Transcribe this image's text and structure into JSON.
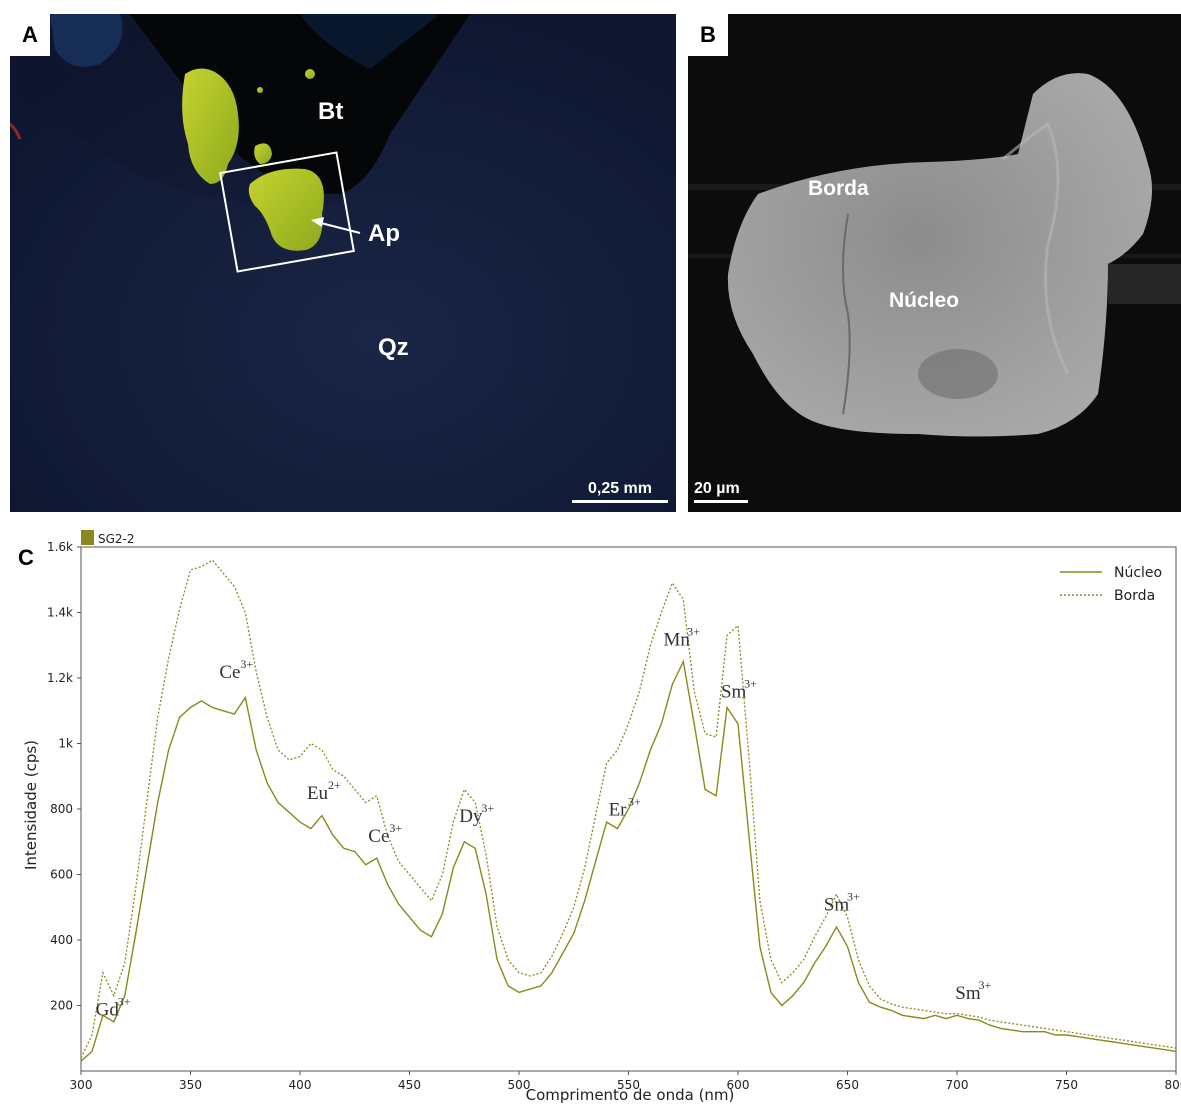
{
  "panel_a": {
    "letter": "A",
    "labels": {
      "bt": "Bt",
      "ap": "Ap",
      "qz": "Qz"
    },
    "scalebar": "0,25 mm",
    "colors": {
      "background": "#101a30",
      "apatite": "#b8cc28",
      "biotite": "#050608",
      "quartz": "#16203a"
    }
  },
  "panel_b": {
    "letter": "B",
    "labels": {
      "borda": "Borda",
      "nucleo": "Núcleo"
    },
    "scalebar": "20 µm",
    "colors": {
      "background": "#0c0c0c",
      "grain": "#9a9a9a"
    }
  },
  "panel_c": {
    "letter": "C"
  },
  "chart_data": {
    "type": "line",
    "sample_label": "SG2-2",
    "xlabel": "Comprimento de onda (nm)",
    "ylabel": "Intensidade (cps)",
    "xlim": [
      300,
      800
    ],
    "ylim": [
      0,
      1600
    ],
    "x_ticks": [
      300,
      350,
      400,
      450,
      500,
      550,
      600,
      650,
      700,
      750,
      800
    ],
    "y_ticks": [
      200,
      400,
      600,
      800,
      1000,
      1200,
      1400,
      1600
    ],
    "y_tick_labels": [
      "200",
      "400",
      "600",
      "800",
      "1k",
      "1.2k",
      "1.4k",
      "1.6k"
    ],
    "legend_position": "top-right",
    "series": [
      {
        "name": "Núcleo",
        "style": "solid",
        "color": "#8a8a1c",
        "x": [
          300,
          305,
          310,
          315,
          320,
          325,
          330,
          335,
          340,
          345,
          350,
          355,
          360,
          365,
          370,
          375,
          380,
          385,
          390,
          395,
          400,
          405,
          410,
          415,
          420,
          425,
          430,
          435,
          440,
          445,
          450,
          455,
          460,
          465,
          470,
          475,
          480,
          485,
          490,
          495,
          500,
          505,
          510,
          515,
          520,
          525,
          530,
          535,
          540,
          545,
          550,
          555,
          560,
          565,
          570,
          575,
          580,
          585,
          590,
          595,
          600,
          605,
          610,
          615,
          620,
          625,
          630,
          635,
          640,
          645,
          650,
          655,
          660,
          665,
          670,
          675,
          680,
          685,
          690,
          695,
          700,
          705,
          710,
          715,
          720,
          725,
          730,
          735,
          740,
          745,
          750,
          755,
          760,
          765,
          770,
          775,
          780,
          785,
          790,
          795,
          800
        ],
        "values": [
          30,
          60,
          170,
          150,
          230,
          420,
          620,
          820,
          980,
          1080,
          1110,
          1130,
          1110,
          1100,
          1090,
          1140,
          980,
          880,
          820,
          790,
          760,
          740,
          780,
          720,
          680,
          670,
          630,
          650,
          570,
          510,
          470,
          430,
          410,
          480,
          620,
          700,
          680,
          540,
          340,
          260,
          240,
          250,
          260,
          300,
          360,
          420,
          520,
          640,
          760,
          740,
          800,
          880,
          980,
          1060,
          1180,
          1250,
          1060,
          860,
          840,
          1110,
          1060,
          720,
          380,
          240,
          200,
          230,
          270,
          330,
          380,
          440,
          380,
          270,
          210,
          195,
          185,
          170,
          165,
          160,
          170,
          160,
          170,
          160,
          155,
          140,
          130,
          125,
          120,
          120,
          120,
          110,
          110,
          105,
          100,
          95,
          90,
          85,
          80,
          75,
          70,
          65,
          60
        ]
      },
      {
        "name": "Borda",
        "style": "dotted",
        "color": "#8a8a1c",
        "x": [
          300,
          305,
          310,
          315,
          320,
          325,
          330,
          335,
          340,
          345,
          350,
          355,
          360,
          365,
          370,
          375,
          380,
          385,
          390,
          395,
          400,
          405,
          410,
          415,
          420,
          425,
          430,
          435,
          440,
          445,
          450,
          455,
          460,
          465,
          470,
          475,
          480,
          485,
          490,
          495,
          500,
          505,
          510,
          515,
          520,
          525,
          530,
          535,
          540,
          545,
          550,
          555,
          560,
          565,
          570,
          575,
          580,
          585,
          590,
          595,
          600,
          605,
          610,
          615,
          620,
          625,
          630,
          635,
          640,
          645,
          650,
          655,
          660,
          665,
          670,
          675,
          680,
          685,
          690,
          695,
          700,
          705,
          710,
          715,
          720,
          725,
          730,
          735,
          740,
          745,
          750,
          755,
          760,
          765,
          770,
          775,
          780,
          785,
          790,
          795,
          800
        ],
        "values": [
          40,
          110,
          300,
          230,
          330,
          560,
          820,
          1080,
          1260,
          1410,
          1530,
          1540,
          1560,
          1520,
          1480,
          1400,
          1220,
          1080,
          980,
          950,
          960,
          1000,
          980,
          920,
          900,
          860,
          820,
          840,
          720,
          640,
          600,
          560,
          520,
          600,
          760,
          860,
          820,
          660,
          440,
          340,
          300,
          290,
          300,
          350,
          420,
          500,
          620,
          780,
          940,
          980,
          1060,
          1160,
          1300,
          1400,
          1490,
          1440,
          1160,
          1030,
          1020,
          1330,
          1360,
          960,
          520,
          340,
          270,
          300,
          340,
          410,
          470,
          540,
          470,
          340,
          260,
          220,
          205,
          195,
          190,
          185,
          180,
          175,
          175,
          170,
          165,
          155,
          150,
          145,
          140,
          135,
          130,
          125,
          120,
          115,
          110,
          105,
          100,
          95,
          90,
          85,
          80,
          75,
          70
        ]
      }
    ],
    "annotations": [
      {
        "ion": "Gd",
        "charge": "3+",
        "x": 312,
        "y": 170
      },
      {
        "ion": "Ce",
        "charge": "3+",
        "x": 368,
        "y": 1200
      },
      {
        "ion": "Eu",
        "charge": "2+",
        "x": 408,
        "y": 830
      },
      {
        "ion": "Ce",
        "charge": "3+",
        "x": 436,
        "y": 700
      },
      {
        "ion": "Dy",
        "charge": "3+",
        "x": 478,
        "y": 760
      },
      {
        "ion": "Er",
        "charge": "3+",
        "x": 545,
        "y": 780
      },
      {
        "ion": "Mn",
        "charge": "3+",
        "x": 572,
        "y": 1300
      },
      {
        "ion": "Sm",
        "charge": "3+",
        "x": 598,
        "y": 1140
      },
      {
        "ion": "Sm",
        "charge": "3+",
        "x": 645,
        "y": 490
      },
      {
        "ion": "Sm",
        "charge": "3+",
        "x": 705,
        "y": 220
      }
    ]
  }
}
